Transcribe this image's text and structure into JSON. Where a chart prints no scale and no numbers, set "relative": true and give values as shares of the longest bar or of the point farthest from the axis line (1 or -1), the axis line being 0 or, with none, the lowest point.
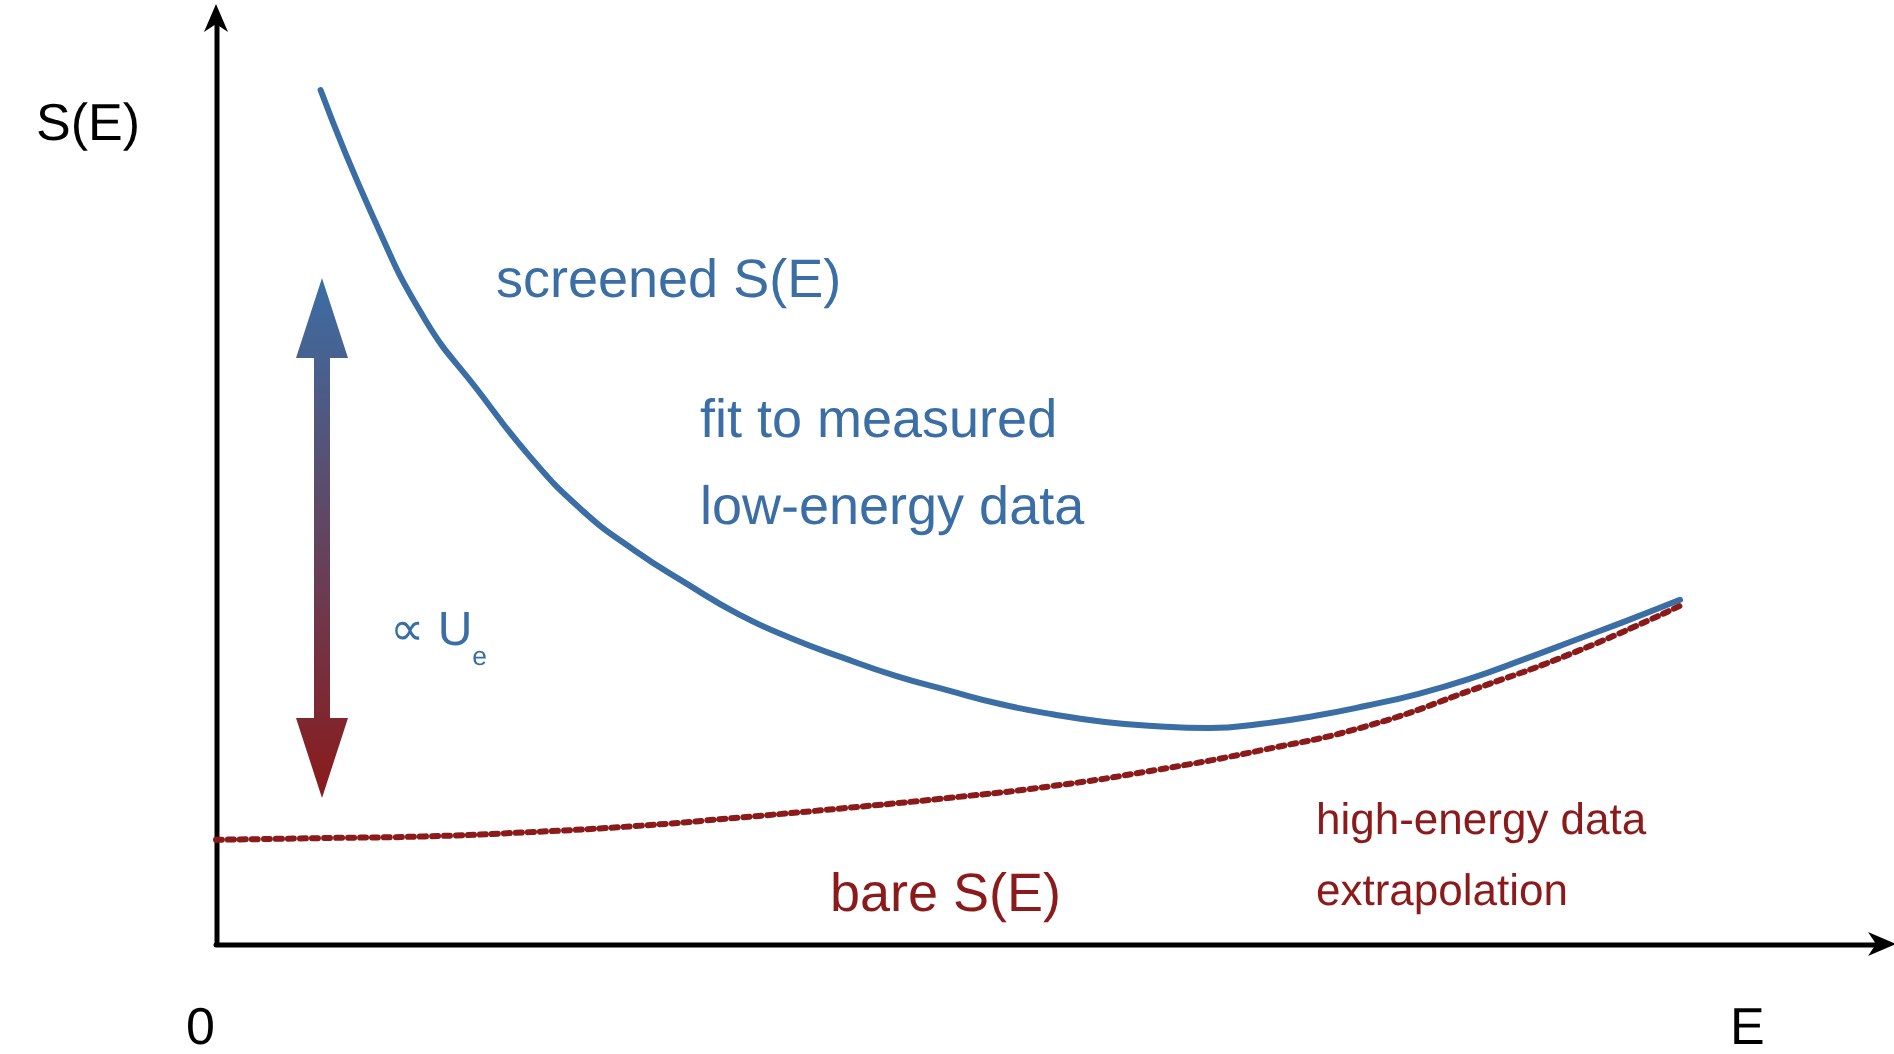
{
  "chart_data": {
    "type": "line",
    "relative": true,
    "xlabel": "E",
    "ylabel": "S(E)",
    "categories": [
      null,
      null,
      null,
      null,
      null,
      null,
      null,
      null,
      null,
      null,
      null,
      null,
      null,
      null,
      null,
      null,
      null,
      null,
      null,
      null,
      null,
      null,
      null,
      null,
      null,
      null,
      null,
      null,
      null
    ],
    "series": [
      {
        "name": "screened S(E)",
        "color": "#3b6ea5",
        "line_style": "solid",
        "values": [
          null,
          null,
          1.0,
          0.852,
          0.731,
          0.649,
          0.571,
          0.508,
          0.461,
          0.422,
          0.386,
          0.358,
          0.335,
          0.314,
          0.297,
          0.281,
          0.269,
          0.26,
          0.255,
          0.253,
          0.258,
          0.267,
          0.279,
          0.293,
          0.311,
          0.333,
          0.356,
          0.379,
          0.403
        ]
      },
      {
        "name": "bare S(E)",
        "color": "#8b1a1a",
        "line_style": "dotted",
        "values": [
          0.122,
          null,
          0.124,
          null,
          0.126,
          null,
          0.131,
          null,
          0.138,
          null,
          0.148,
          null,
          0.159,
          null,
          0.171,
          null,
          0.185,
          null,
          0.204,
          null,
          0.227,
          null,
          0.255,
          null,
          0.297,
          null,
          0.342,
          null,
          0.396
        ]
      }
    ],
    "annotations": [
      "fit to measured\nlow-energy data",
      "high-energy data\nextrapolation",
      "∝ U$_{e}$",
      "0"
    ],
    "legend": false,
    "grid": false,
    "marker": "none"
  }
}
